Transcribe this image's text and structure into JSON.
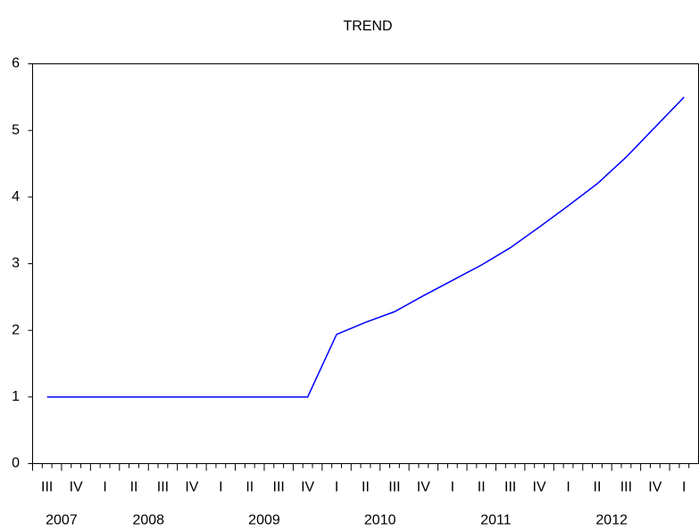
{
  "chart_data": {
    "type": "line",
    "title": "TREND",
    "categories": [
      "III",
      "IV",
      "I",
      "II",
      "III",
      "IV",
      "I",
      "II",
      "III",
      "IV",
      "I",
      "II",
      "III",
      "IV",
      "I",
      "II",
      "III",
      "IV",
      "I",
      "II",
      "III",
      "IV",
      "I"
    ],
    "years": [
      "2007",
      "2008",
      "2009",
      "2010",
      "2011",
      "2012"
    ],
    "series": [
      {
        "color": "#0000ff",
        "values": [
          1,
          1,
          1,
          1,
          1,
          1,
          1,
          1,
          1,
          1,
          1.94,
          2.12,
          2.28,
          2.52,
          2.75,
          2.98,
          3.24,
          3.55,
          3.87,
          4.2,
          4.6,
          5.05,
          5.5
        ]
      }
    ],
    "ylim": [
      0,
      6
    ],
    "yticks": [
      0,
      1,
      2,
      3,
      4,
      5,
      6
    ],
    "grid": false
  }
}
